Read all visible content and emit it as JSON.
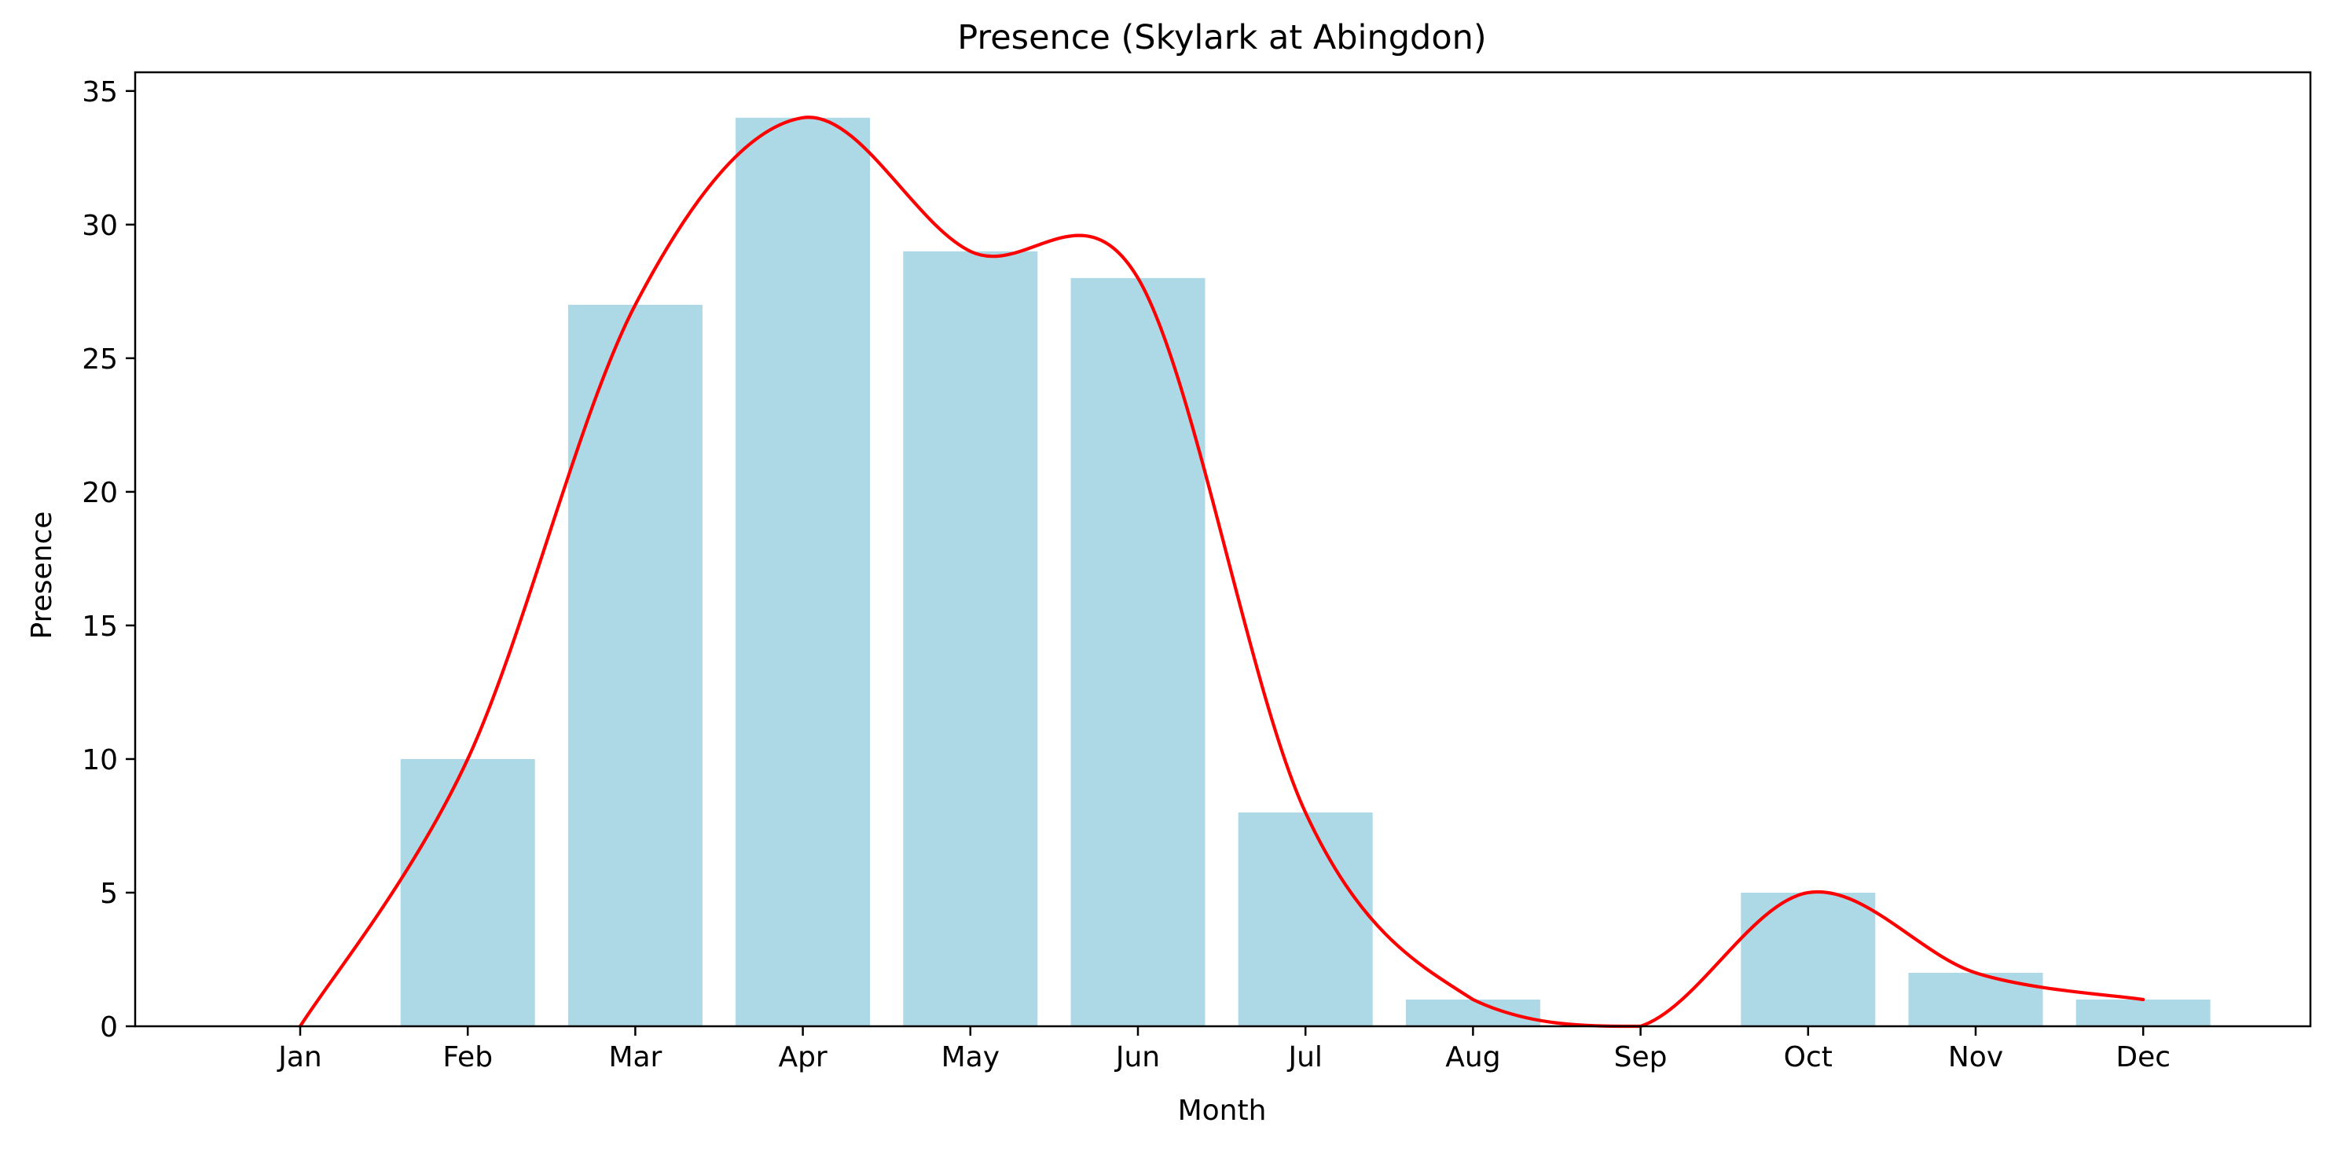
{
  "chart_data": {
    "type": "bar",
    "title": "Presence (Skylark at Abingdon)",
    "xlabel": "Month",
    "ylabel": "Presence",
    "categories": [
      "Jan",
      "Feb",
      "Mar",
      "Apr",
      "May",
      "Jun",
      "Jul",
      "Aug",
      "Sep",
      "Oct",
      "Nov",
      "Dec"
    ],
    "values": [
      0,
      10,
      27,
      34,
      29,
      28,
      8,
      1,
      0,
      5,
      2,
      1
    ],
    "ylim": [
      0,
      35.7
    ],
    "yticks": [
      0,
      5,
      10,
      15,
      20,
      25,
      30,
      35
    ],
    "grid": false,
    "bar_color": "#add8e6",
    "overlay": {
      "type": "line",
      "style": "smoothed",
      "color": "#ff0000",
      "values": [
        0,
        10,
        27,
        34,
        29,
        28,
        8,
        1,
        0,
        5,
        2,
        1
      ]
    }
  }
}
